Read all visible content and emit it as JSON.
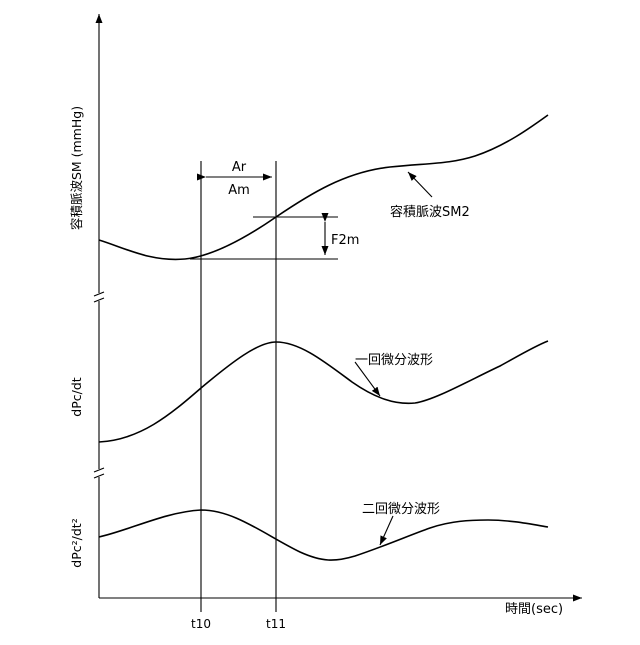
{
  "labels": {
    "y_axis_top": "容積脈波SM (mmHg)",
    "y_axis_mid": "dPc/dt",
    "y_axis_bottom": "dPc²/dt²",
    "x_axis": "時間(sec)",
    "ar": "Ar",
    "am": "Am",
    "f2m": "F2m",
    "sm2_label": "容積脈波SM2",
    "first_derivative_label": "一回微分波形",
    "second_derivative_label": "二回微分波形",
    "t10": "t10",
    "t11": "t11"
  }
}
